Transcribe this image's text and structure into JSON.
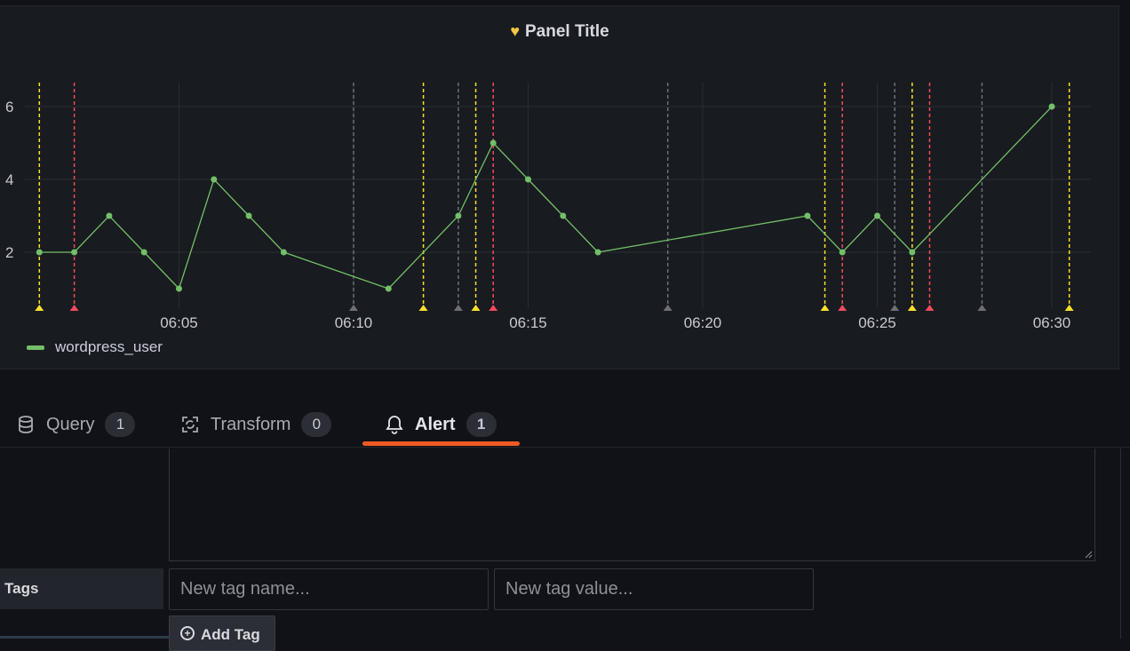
{
  "panel": {
    "title": "Panel Title",
    "title_icon": "heart-icon",
    "title_icon_color": "#f2c744"
  },
  "chart_data": {
    "type": "line",
    "title": "Panel Title",
    "xlabel": "",
    "ylabel": "",
    "x_ticks": [
      "06:05",
      "06:10",
      "06:15",
      "06:20",
      "06:25",
      "06:30"
    ],
    "y_ticks": [
      2,
      4,
      6
    ],
    "ylim": [
      0.6,
      6.5
    ],
    "xlim_minutes": [
      0.0,
      31.5
    ],
    "series": [
      {
        "name": "wordpress_user",
        "color": "#73bf69",
        "x_minutes": [
          1.0,
          2.0,
          3.0,
          4.0,
          5.0,
          6.0,
          7.0,
          8.0,
          11.0,
          13.0,
          14.0,
          15.0,
          16.0,
          17.0,
          23.0,
          24.0,
          25.0,
          26.0,
          30.0
        ],
        "values": [
          2,
          2,
          3,
          2,
          1,
          4,
          3,
          2,
          1,
          3,
          5,
          4,
          3,
          2,
          3,
          2,
          3,
          2,
          6
        ]
      }
    ],
    "annotations": [
      {
        "x_minutes": 1.0,
        "color": "#fade2a"
      },
      {
        "x_minutes": 2.0,
        "color": "#f2495c"
      },
      {
        "x_minutes": 10.0,
        "color": "#6e6f75"
      },
      {
        "x_minutes": 12.0,
        "color": "#fade2a"
      },
      {
        "x_minutes": 13.0,
        "color": "#6e6f75"
      },
      {
        "x_minutes": 13.5,
        "color": "#fade2a"
      },
      {
        "x_minutes": 14.0,
        "color": "#f2495c"
      },
      {
        "x_minutes": 19.0,
        "color": "#6e6f75"
      },
      {
        "x_minutes": 23.5,
        "color": "#fade2a"
      },
      {
        "x_minutes": 24.0,
        "color": "#f2495c"
      },
      {
        "x_minutes": 25.5,
        "color": "#6e6f75"
      },
      {
        "x_minutes": 26.0,
        "color": "#fade2a"
      },
      {
        "x_minutes": 26.5,
        "color": "#f2495c"
      },
      {
        "x_minutes": 28.0,
        "color": "#6e6f75"
      },
      {
        "x_minutes": 30.5,
        "color": "#fade2a"
      }
    ],
    "x_tick_minutes": [
      5,
      10,
      15,
      20,
      25,
      30
    ],
    "legend": "bottom-left",
    "grid": true
  },
  "legend": {
    "label": "wordpress_user",
    "color": "#73bf69"
  },
  "tabs": [
    {
      "label": "Query",
      "count": "1",
      "icon": "database-icon"
    },
    {
      "label": "Transform",
      "count": "0",
      "icon": "transform-icon"
    },
    {
      "label": "Alert",
      "count": "1",
      "icon": "bell-icon",
      "active": true
    }
  ],
  "form": {
    "tags_label": "Tags",
    "tag_name_placeholder": "New tag name...",
    "tag_value_placeholder": "New tag value...",
    "add_tag_label": "Add Tag"
  },
  "colors": {
    "accent": "#f15a24",
    "series": "#73bf69",
    "warning": "#fade2a",
    "critical": "#f2495c"
  }
}
